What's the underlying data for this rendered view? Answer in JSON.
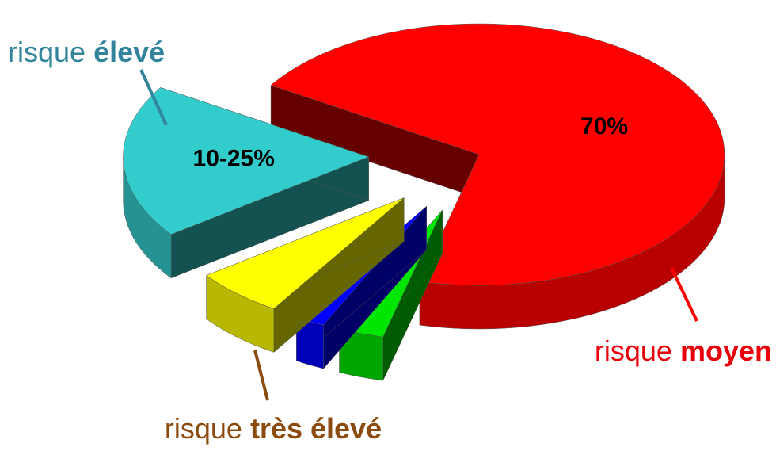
{
  "chart_data": {
    "type": "pie",
    "values": [
      70,
      3,
      2,
      6,
      19
    ],
    "value_labels": [
      "70%",
      null,
      null,
      null,
      "10-25%"
    ],
    "labels": [
      {
        "prefix": "risque",
        "emphasis": "moyen",
        "color": "#e8000b"
      },
      null,
      null,
      {
        "prefix": "risque",
        "emphasis": "très élevé",
        "color": "#8b4a0e"
      },
      {
        "prefix": "risque",
        "emphasis": "élevé",
        "color": "#31849b"
      }
    ],
    "colors": [
      "#ff0000",
      "#00e600",
      "#0000ff",
      "#ffff00",
      "#33cccc"
    ]
  }
}
